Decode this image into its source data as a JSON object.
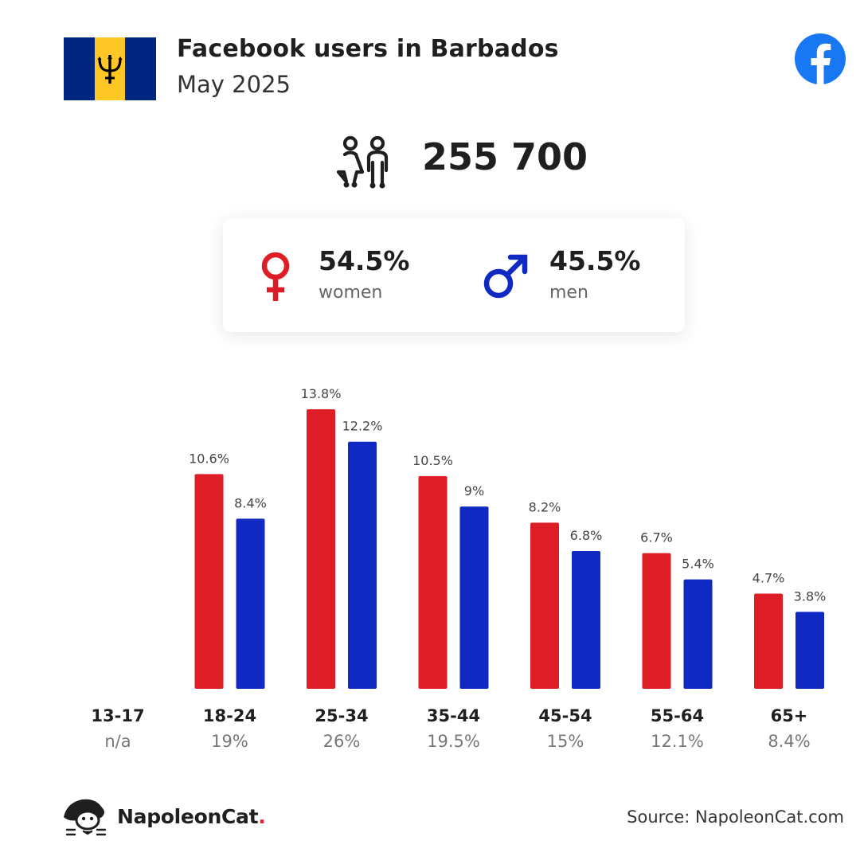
{
  "header": {
    "title": "Facebook users in Barbados",
    "subtitle": "May 2025",
    "flag_icon": "barbados-flag-icon",
    "brand_icon": "facebook-icon"
  },
  "summary": {
    "total": "255 700",
    "icon": "people-icon"
  },
  "gender": {
    "women": {
      "percent": "54.5%",
      "label": "women",
      "icon": "female-symbol-icon",
      "color": "#dd1e26"
    },
    "men": {
      "percent": "45.5%",
      "label": "men",
      "icon": "male-symbol-icon",
      "color": "#1029c2"
    }
  },
  "chart_data": {
    "type": "bar",
    "categories": [
      "13-17",
      "18-24",
      "25-34",
      "35-44",
      "45-54",
      "55-64",
      "65+"
    ],
    "category_totals": [
      "n/a",
      "19%",
      "26%",
      "19.5%",
      "15%",
      "12.1%",
      "8.4%"
    ],
    "series": [
      {
        "values": [
          null,
          10.6,
          13.8,
          10.5,
          8.2,
          6.7,
          4.7
        ],
        "labels": [
          "",
          "10.6%",
          "13.8%",
          "10.5%",
          "8.2%",
          "6.7%",
          "4.7%"
        ],
        "color": "#dd1e26"
      },
      {
        "values": [
          null,
          8.4,
          12.2,
          9,
          6.8,
          5.4,
          3.8
        ],
        "labels": [
          "",
          "8.4%",
          "12.2%",
          "9%",
          "6.8%",
          "5.4%",
          "3.8%"
        ],
        "color": "#1029c2"
      }
    ],
    "ylim": [
      0,
      13.8
    ],
    "grid": false
  },
  "footer": {
    "logo_text": "NapoleonCat",
    "logo_dot": ".",
    "logo_icon": "napoleoncat-logo-icon",
    "source": "Source: NapoleonCat.com"
  }
}
